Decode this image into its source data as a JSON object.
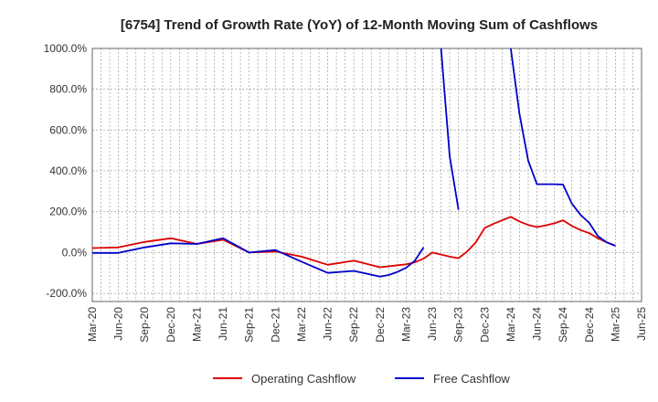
{
  "chart_data": {
    "type": "line",
    "title": "[6754]  Trend of Growth Rate (YoY) of 12-Month Moving Sum of Cashflows",
    "xlabel": "",
    "ylabel": "",
    "ylim": [
      -240,
      1000
    ],
    "yticks": [
      -200,
      0,
      200,
      400,
      600,
      800,
      1000
    ],
    "ytick_labels": [
      "-200.0%",
      "0.0%",
      "200.0%",
      "400.0%",
      "600.0%",
      "800.0%",
      "1000.0%"
    ],
    "x_labels": [
      "Mar-20",
      "Jun-20",
      "Sep-20",
      "Dec-20",
      "Mar-21",
      "Jun-21",
      "Sep-21",
      "Dec-21",
      "Mar-22",
      "Jun-22",
      "Sep-22",
      "Dec-22",
      "Mar-23",
      "Jun-23",
      "Sep-23",
      "Dec-23",
      "Mar-24",
      "Jun-24",
      "Sep-24",
      "Dec-24",
      "Mar-25",
      "Jun-25"
    ],
    "x_months": [
      "Mar-20",
      "Apr-20",
      "May-20",
      "Jun-20",
      "Jul-20",
      "Aug-20",
      "Sep-20",
      "Oct-20",
      "Nov-20",
      "Dec-20",
      "Jan-21",
      "Feb-21",
      "Mar-21",
      "Apr-21",
      "May-21",
      "Jun-21",
      "Jul-21",
      "Aug-21",
      "Sep-21",
      "Oct-21",
      "Nov-21",
      "Dec-21",
      "Jan-22",
      "Feb-22",
      "Mar-22",
      "Apr-22",
      "May-22",
      "Jun-22",
      "Jul-22",
      "Aug-22",
      "Sep-22",
      "Oct-22",
      "Nov-22",
      "Dec-22",
      "Jan-23",
      "Feb-23",
      "Mar-23",
      "Apr-23",
      "May-23",
      "Jun-23",
      "Jul-23",
      "Aug-23",
      "Sep-23",
      "Oct-23",
      "Nov-23",
      "Dec-23",
      "Jan-24",
      "Feb-24",
      "Mar-24",
      "Apr-24",
      "May-24",
      "Jun-24",
      "Jul-24",
      "Aug-24",
      "Sep-24",
      "Oct-24",
      "Nov-24",
      "Dec-24",
      "Jan-25",
      "Feb-25",
      "Mar-25",
      "Apr-25",
      "May-25",
      "Jun-25"
    ],
    "grid": true,
    "legend_position": "bottom",
    "series": [
      {
        "name": "Operating Cashflow",
        "color": "#dd0000",
        "x": [
          "Mar-20",
          "Jun-20",
          "Sep-20",
          "Dec-20",
          "Mar-21",
          "Jun-21",
          "Sep-21",
          "Dec-21",
          "Mar-22",
          "Jun-22",
          "Sep-22",
          "Dec-22",
          "Mar-23",
          "Apr-23",
          "May-23",
          "Jun-23",
          "Jul-23",
          "Aug-23",
          "Sep-23",
          "Oct-23",
          "Nov-23",
          "Dec-23",
          "Jan-24",
          "Feb-24",
          "Mar-24",
          "Apr-24",
          "May-24",
          "Jun-24",
          "Jul-24",
          "Aug-24",
          "Sep-24",
          "Oct-24",
          "Nov-24",
          "Dec-24",
          "Jan-25",
          "Feb-25",
          "Mar-25"
        ],
        "values": [
          22,
          25,
          52,
          70,
          42,
          62,
          0,
          5,
          -20,
          -60,
          -40,
          -72,
          -58,
          -48,
          -30,
          0,
          -10,
          -20,
          -28,
          5,
          50,
          120,
          140,
          158,
          175,
          152,
          135,
          125,
          133,
          143,
          158,
          130,
          110,
          95,
          70,
          50,
          33
        ]
      },
      {
        "name": "Free Cashflow",
        "color": "#0000cc",
        "x": [
          "Mar-20",
          "Jun-20",
          "Sep-20",
          "Dec-20",
          "Mar-21",
          "Jun-21",
          "Sep-21",
          "Dec-21",
          "Mar-22",
          "Jun-22",
          "Sep-22",
          "Dec-22",
          "Jan-23",
          "Feb-23",
          "Mar-23",
          "Apr-23",
          "May-23",
          "Jun-23",
          "Jul-23",
          "Aug-23",
          "Sep-23",
          "Oct-23",
          "Nov-23",
          "Dec-23",
          "Jan-24",
          "Feb-24",
          "Mar-24",
          "Apr-24",
          "May-24",
          "Jun-24",
          "Jul-24",
          "Aug-24",
          "Sep-24",
          "Oct-24",
          "Nov-24",
          "Dec-24",
          "Jan-25",
          "Feb-25",
          "Mar-25"
        ],
        "values": [
          -2,
          -2,
          25,
          45,
          42,
          70,
          0,
          12,
          -45,
          -100,
          -90,
          -118,
          -110,
          -95,
          -75,
          -40,
          25,
          null,
          null,
          null,
          null,
          null,
          null,
          null,
          null,
          null,
          null,
          null,
          null,
          null,
          null,
          null,
          null,
          null,
          null,
          null,
          null,
          null,
          null
        ],
        "segments": [
          {
            "x": [
              "Mar-20",
              "Jun-20",
              "Sep-20",
              "Dec-20",
              "Mar-21",
              "Jun-21",
              "Sep-21",
              "Dec-21",
              "Mar-22",
              "Jun-22",
              "Sep-22",
              "Dec-22",
              "Jan-23",
              "Feb-23",
              "Mar-23",
              "Apr-23",
              "May-23"
            ],
            "values": [
              -2,
              -2,
              25,
              45,
              42,
              70,
              0,
              12,
              -45,
              -100,
              -90,
              -118,
              -110,
              -95,
              -75,
              -40,
              25
            ]
          },
          {
            "x": [
              "Jul-23",
              "Aug-23",
              "Sep-23"
            ],
            "values": [
              1000,
              470,
              210
            ]
          },
          {
            "x": [
              "Mar-24",
              "Apr-24",
              "May-24",
              "Jun-24",
              "Jul-24",
              "Aug-24",
              "Sep-24",
              "Oct-24",
              "Nov-24",
              "Dec-24",
              "Jan-25",
              "Feb-25",
              "Mar-25"
            ],
            "values": [
              1000,
              680,
              450,
              335,
              335,
              335,
              333,
              240,
              185,
              145,
              80,
              50,
              33
            ]
          }
        ]
      }
    ]
  }
}
